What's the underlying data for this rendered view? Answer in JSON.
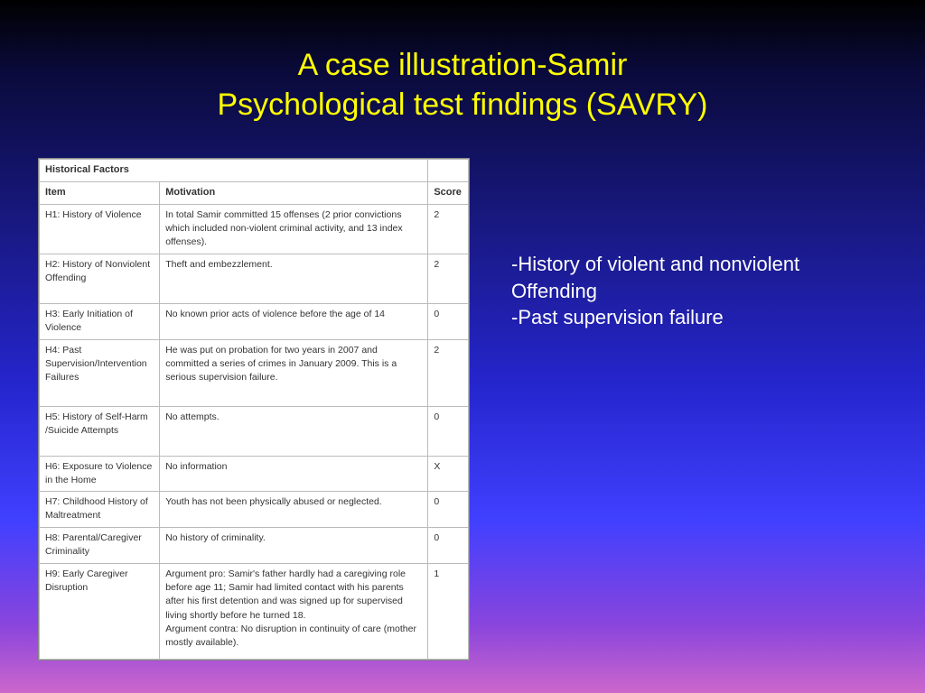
{
  "title": {
    "line1": "A case illustration-Samir",
    "line2": "Psychological test findings (SAVRY)"
  },
  "table": {
    "section_header": "Historical Factors",
    "columns": {
      "item": "Item",
      "motivation": "Motivation",
      "score": "Score"
    },
    "rows": [
      {
        "item": "H1: History of Violence",
        "motivation": "In total Samir committed 15 offenses (2 prior convictions which included non-violent criminal activity, and 13 index offenses).",
        "score": "2"
      },
      {
        "item": "H2: History of Nonviolent Offending",
        "motivation": "Theft and embezzlement.",
        "score": "2"
      },
      {
        "item": "H3: Early Initiation of Violence",
        "motivation": "No known prior acts of violence before the age of 14",
        "score": "0"
      },
      {
        "item": "H4: Past Supervision/Intervention Failures",
        "motivation": "He was put on probation for two years in 2007 and committed a series of crimes in January 2009. This is a serious supervision failure.",
        "score": "2"
      },
      {
        "item": "H5: History of Self-Harm /Suicide Attempts",
        "motivation": "No attempts.",
        "score": "0"
      },
      {
        "item": "H6: Exposure to Violence in the Home",
        "motivation": "No information",
        "score": "X"
      },
      {
        "item": "H7: Childhood History of Maltreatment",
        "motivation": "Youth has not been physically abused or neglected.",
        "score": "0"
      },
      {
        "item": "H8: Parental/Caregiver Criminality",
        "motivation": "No history of criminality.",
        "score": "0"
      },
      {
        "item": "H9: Early Caregiver Disruption",
        "motivation": "Argument pro: Samir's father hardly had a caregiving role before age 11; Samir had limited contact with his parents after his first detention and was signed up for supervised living shortly before he turned 18.\nArgument contra: No disruption in continuity of care (mother mostly available).",
        "score": "1"
      }
    ]
  },
  "bullets": {
    "b1": "History of violent and nonviolent",
    "b1b": "Offending",
    "b2": "Past supervision failure"
  },
  "row_heights": [
    "44",
    "55",
    "40",
    "74",
    "55",
    "38",
    "40",
    "40",
    "106"
  ]
}
